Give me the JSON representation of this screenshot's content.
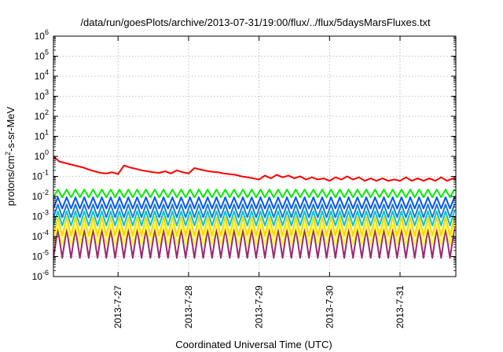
{
  "chart_data": {
    "type": "line",
    "title": "/data/run/goesPlots/archive/2013-07-31/19:00/flux/../flux/5daysMarsFluxes.txt",
    "xlabel": "Coordinated Universal Time (UTC)",
    "ylabel": {
      "base": "protons/cm",
      "sup": "2",
      "rest": "-s-sr-MeV"
    },
    "y_scale": "log",
    "ylim": [
      1e-06,
      1000000.0
    ],
    "y_ticks": [
      {
        "value": 1000000.0,
        "base": "10",
        "exp": "6"
      },
      {
        "value": 100000.0,
        "base": "10",
        "exp": "5"
      },
      {
        "value": 10000.0,
        "base": "10",
        "exp": "4"
      },
      {
        "value": 1000.0,
        "base": "10",
        "exp": "3"
      },
      {
        "value": 100.0,
        "base": "10",
        "exp": "2"
      },
      {
        "value": 10.0,
        "base": "10",
        "exp": "1"
      },
      {
        "value": 1.0,
        "base": "10",
        "exp": "0"
      },
      {
        "value": 0.1,
        "base": "10",
        "exp": "-1"
      },
      {
        "value": 0.01,
        "base": "10",
        "exp": "-2"
      },
      {
        "value": 0.001,
        "base": "10",
        "exp": "-3"
      },
      {
        "value": 0.0001,
        "base": "10",
        "exp": "-4"
      },
      {
        "value": 1e-05,
        "base": "10",
        "exp": "-5"
      },
      {
        "value": 1e-06,
        "base": "10",
        "exp": "-6"
      }
    ],
    "xlim": [
      "2013-07-26 02:00",
      "2013-07-31 19:00"
    ],
    "x_ticks": [
      "2013-7-27",
      "2013-7-28",
      "2013-7-29",
      "2013-7-30",
      "2013-7-31"
    ],
    "grid": true,
    "legend": "none",
    "series": [
      {
        "color": "#ff0000",
        "x": [
          "2013-07-26 02:00",
          "2013-07-26 04:00",
          "2013-07-26 12:00",
          "2013-07-26 14:00",
          "2013-07-26 16:00",
          "2013-07-26 18:00",
          "2013-07-26 20:00",
          "2013-07-26 22:00",
          "2013-07-27 00:00",
          "2013-07-27 02:00",
          "2013-07-27 04:00",
          "2013-07-27 06:00",
          "2013-07-27 08:00",
          "2013-07-27 10:00",
          "2013-07-27 12:00",
          "2013-07-27 14:00",
          "2013-07-27 16:00",
          "2013-07-27 18:00",
          "2013-07-27 20:00",
          "2013-07-27 22:00",
          "2013-07-28 00:00",
          "2013-07-28 02:00",
          "2013-07-28 04:00",
          "2013-07-28 06:00",
          "2013-07-28 08:00",
          "2013-07-28 10:00",
          "2013-07-28 12:00",
          "2013-07-28 14:00",
          "2013-07-28 16:00",
          "2013-07-28 18:00",
          "2013-07-28 20:00",
          "2013-07-28 22:00",
          "2013-07-29 00:00",
          "2013-07-29 02:00",
          "2013-07-29 04:00",
          "2013-07-29 06:00",
          "2013-07-29 08:00",
          "2013-07-29 10:00",
          "2013-07-29 12:00",
          "2013-07-29 14:00",
          "2013-07-29 16:00",
          "2013-07-29 18:00",
          "2013-07-29 20:00",
          "2013-07-29 22:00",
          "2013-07-30 00:00",
          "2013-07-30 02:00",
          "2013-07-30 04:00",
          "2013-07-30 06:00",
          "2013-07-30 08:00",
          "2013-07-30 10:00",
          "2013-07-30 12:00",
          "2013-07-30 14:00",
          "2013-07-30 16:00",
          "2013-07-30 18:00",
          "2013-07-30 20:00",
          "2013-07-30 22:00",
          "2013-07-31 00:00",
          "2013-07-31 02:00",
          "2013-07-31 04:00",
          "2013-07-31 06:00",
          "2013-07-31 08:00",
          "2013-07-31 10:00",
          "2013-07-31 12:00",
          "2013-07-31 14:00",
          "2013-07-31 16:00",
          "2013-07-31 18:00",
          "2013-07-31 19:00"
        ],
        "y": [
          1.0,
          0.55,
          0.28,
          0.22,
          0.18,
          0.15,
          0.14,
          0.16,
          0.13,
          0.35,
          0.28,
          0.24,
          0.2,
          0.18,
          0.16,
          0.15,
          0.18,
          0.14,
          0.2,
          0.16,
          0.14,
          0.26,
          0.22,
          0.19,
          0.17,
          0.16,
          0.14,
          0.13,
          0.12,
          0.1,
          0.09,
          0.08,
          0.07,
          0.11,
          0.08,
          0.12,
          0.09,
          0.11,
          0.08,
          0.1,
          0.07,
          0.09,
          0.07,
          0.08,
          0.06,
          0.09,
          0.07,
          0.1,
          0.07,
          0.09,
          0.06,
          0.08,
          0.06,
          0.08,
          0.06,
          0.07,
          0.06,
          0.09,
          0.06,
          0.08,
          0.06,
          0.08,
          0.06,
          0.09,
          0.06,
          0.08,
          0.07
        ]
      },
      {
        "color": "#00ee00",
        "peak": 0.022,
        "trough": 0.009
      },
      {
        "color": "#0055ff",
        "peak": 0.009,
        "trough": 0.0025
      },
      {
        "color": "#1a7ad6",
        "peak": 0.004,
        "trough": 0.0009
      },
      {
        "color": "#00c8c8",
        "peak": 0.0018,
        "trough": 0.00035
      },
      {
        "color": "#ffd400",
        "peak": 0.0009,
        "trough": 0.00011
      },
      {
        "color": "#ffff40",
        "peak": 0.0004,
        "trough": 4e-05
      },
      {
        "color": "#9b2a6e",
        "peak": 0.00025,
        "trough": 8.5e-06
      }
    ]
  }
}
